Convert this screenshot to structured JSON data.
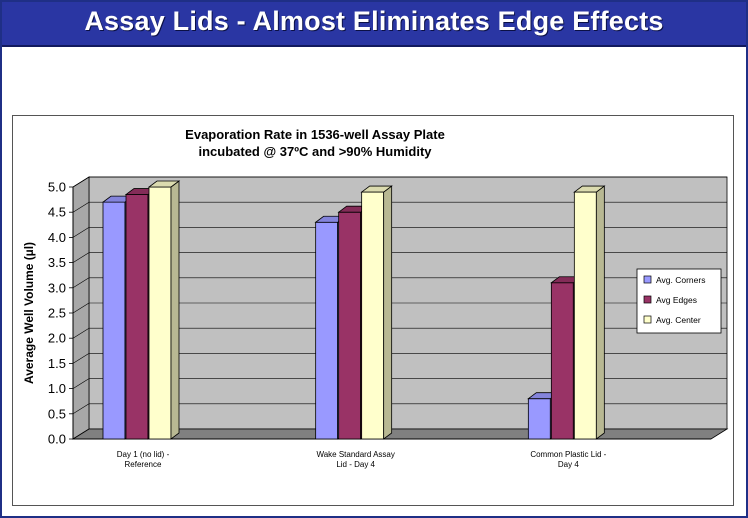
{
  "slide": {
    "title": "Assay Lids - Almost Eliminates Edge Effects"
  },
  "colors": {
    "title_bar": "#2a36a3",
    "plot_wall": "#c0c0c0",
    "series": [
      "#9999ff",
      "#993366",
      "#ffffcc"
    ]
  },
  "chart_data": {
    "type": "bar",
    "style": "3d-clustered-column",
    "title_lines": [
      "Evaporation Rate in 1536-well Assay Plate",
      "incubated @ 37ºC and >90% Humidity"
    ],
    "ylabel": "Average Well Volume (µl)",
    "ylim": [
      0,
      5
    ],
    "yticks": [
      "0.0",
      "0.5",
      "1.0",
      "1.5",
      "2.0",
      "2.5",
      "3.0",
      "3.5",
      "4.0",
      "4.5",
      "5.0"
    ],
    "grid": true,
    "legend_position": "right",
    "categories": [
      [
        "Day 1 (no lid) -",
        "Reference"
      ],
      [
        "Wake Standard Assay",
        "Lid - Day 4"
      ],
      [
        "Common Plastic Lid -",
        "Day 4"
      ]
    ],
    "series": [
      {
        "name": "Avg. Corners",
        "values": [
          4.7,
          4.3,
          0.8
        ]
      },
      {
        "name": "Avg Edges",
        "values": [
          4.85,
          4.5,
          3.1
        ]
      },
      {
        "name": "Avg. Center",
        "values": [
          5.0,
          4.9,
          4.9
        ]
      }
    ]
  }
}
